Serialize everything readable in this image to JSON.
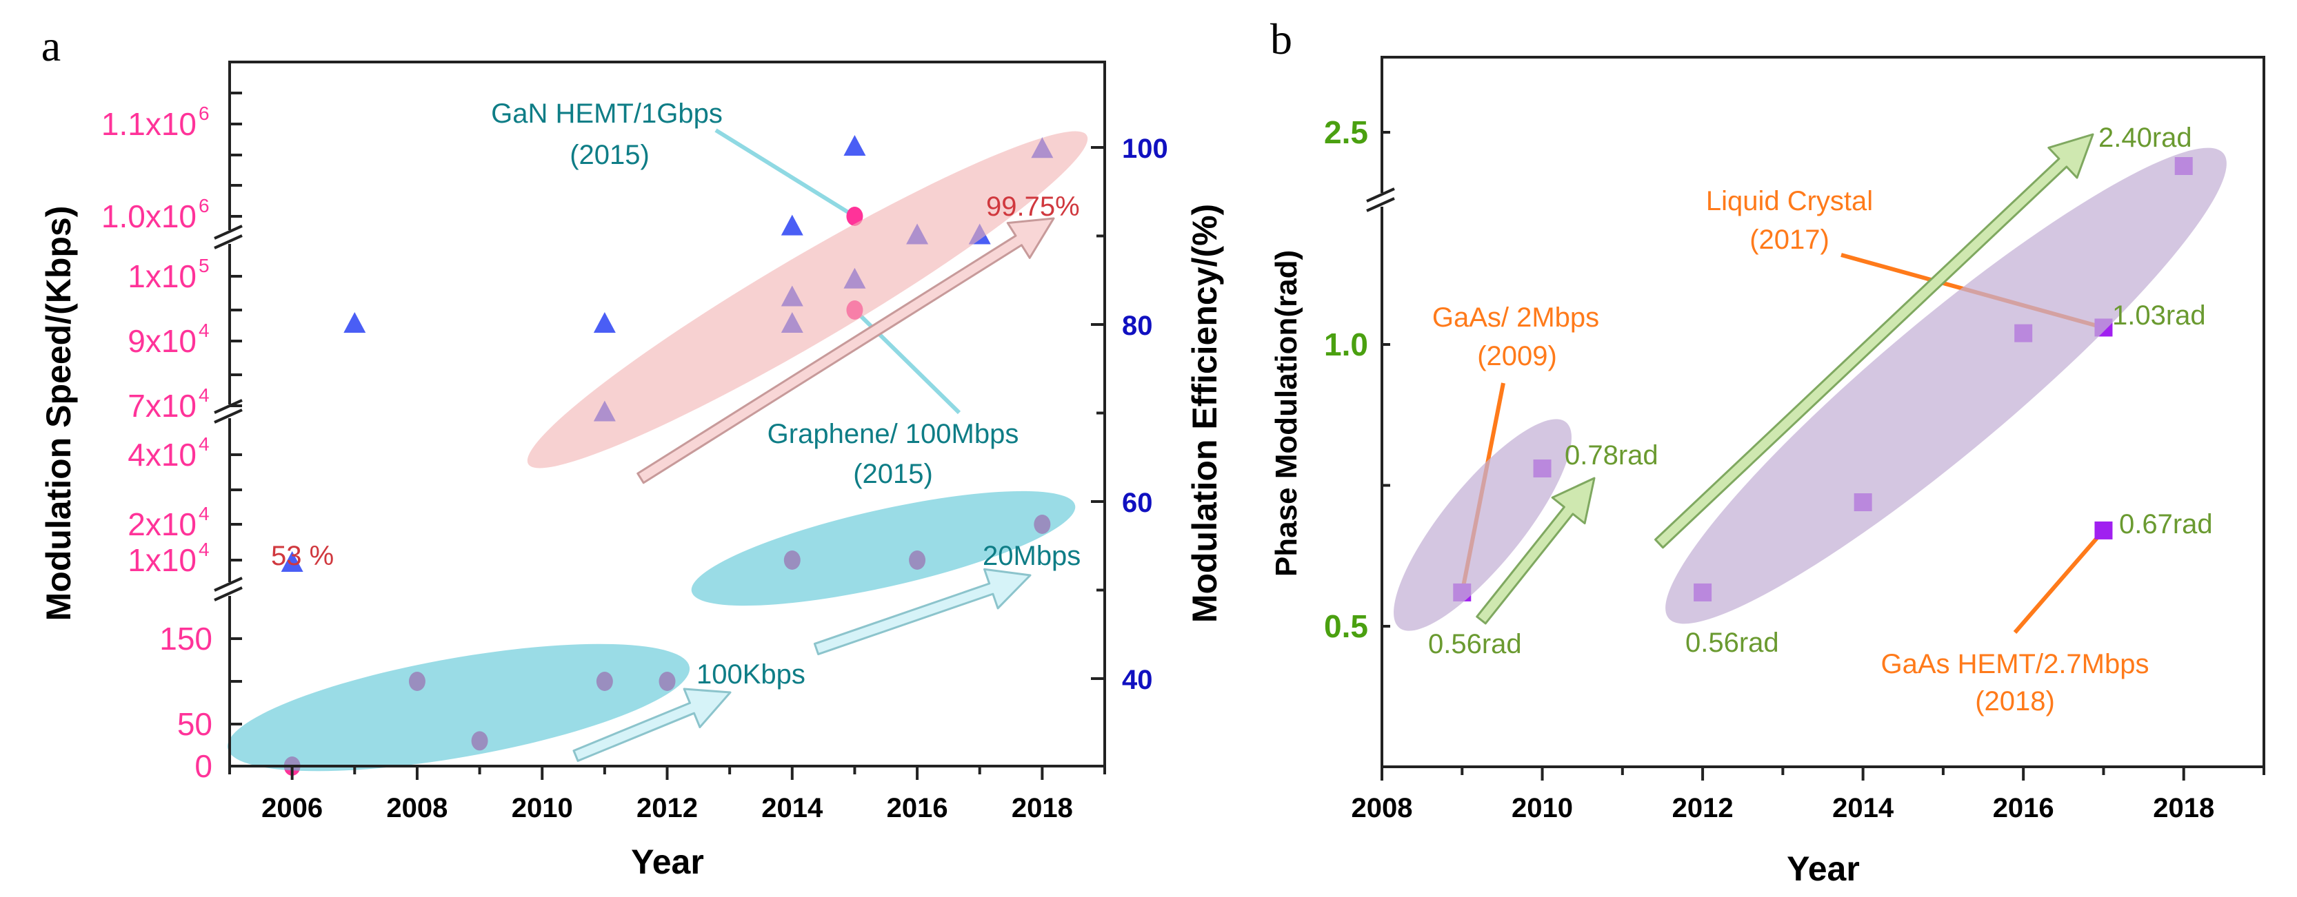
{
  "colors": {
    "speed_tick": "#ff3399",
    "efficiency_tick": "#1010c0",
    "phase_tick": "#4aa010",
    "speed_marker": "#ff3399",
    "efficiency_marker": "#4a5ef5",
    "phase_marker": "#a020f0",
    "teal_text": "#0e7d86",
    "red_text": "#d0383e",
    "orange_text": "#ff7a1a",
    "green_text": "#6a9a30",
    "pink_region": "#f2b3b3",
    "cyan_region": "#5cc6d6",
    "purple_region": "#c4b0d6"
  },
  "chart_data": [
    {
      "panel": "a",
      "type": "scatter",
      "xlabel": "Year",
      "ylabel": "Modulation Speed/(Kbps)",
      "y2label": "Modulation Efficiency/(%)",
      "xlim": [
        2005,
        2019
      ],
      "xticks": [
        "2006",
        "2008",
        "2010",
        "2012",
        "2014",
        "2016",
        "2018"
      ],
      "y_axis": "broken",
      "yticks": [
        {
          "value": 0,
          "base": "0",
          "exp": ""
        },
        {
          "value": 50,
          "base": "50",
          "exp": ""
        },
        {
          "value": 150,
          "base": "150",
          "exp": ""
        },
        {
          "value": 10000,
          "base": "1x10",
          "exp": "4"
        },
        {
          "value": 20000,
          "base": "2x10",
          "exp": "4"
        },
        {
          "value": 40000,
          "base": "4x10",
          "exp": "4"
        },
        {
          "value": 70000,
          "base": "7x10",
          "exp": "4"
        },
        {
          "value": 90000,
          "base": "9x10",
          "exp": "4"
        },
        {
          "value": 100000,
          "base": "1x10",
          "exp": "5"
        },
        {
          "value": 1000000,
          "base": "1.0x10",
          "exp": "6"
        },
        {
          "value": 1100000,
          "base": "1.1x10",
          "exp": "6"
        }
      ],
      "y2lim": [
        30,
        110
      ],
      "y2ticks": [
        40,
        60,
        80,
        100
      ],
      "series": [
        {
          "axis": "left",
          "marker": "circle",
          "points": [
            [
              2006,
              0
            ],
            [
              2008,
              100
            ],
            [
              2009,
              30
            ],
            [
              2011,
              100
            ],
            [
              2012,
              100
            ],
            [
              2014,
              10000
            ],
            [
              2015,
              95000
            ],
            [
              2015,
              1000000
            ],
            [
              2016,
              10000
            ],
            [
              2018,
              20000
            ]
          ]
        },
        {
          "axis": "right",
          "marker": "triangle",
          "points": [
            [
              2006,
              53
            ],
            [
              2007,
              80
            ],
            [
              2011,
              80
            ],
            [
              2011,
              70
            ],
            [
              2014,
              91
            ],
            [
              2014,
              83
            ],
            [
              2014,
              80
            ],
            [
              2015,
              100
            ],
            [
              2015,
              85
            ],
            [
              2016,
              90
            ],
            [
              2017,
              90
            ],
            [
              2018,
              99.75
            ]
          ]
        }
      ],
      "annotations": {
        "gan_title": "GaN HEMT/1Gbps",
        "gan_year": "(2015)",
        "graphene_title": "Graphene/ 100Mbps",
        "graphene_year": "(2015)",
        "pct_high": "99.75%",
        "pct_low": "53 %",
        "rate_low": "100Kbps",
        "rate_mid": "20Mbps"
      }
    },
    {
      "panel": "b",
      "type": "scatter",
      "xlabel": "Year",
      "ylabel": "Phase Modulation(rad)",
      "xlim": [
        2008,
        2019
      ],
      "xticks": [
        "2008",
        "2010",
        "2012",
        "2014",
        "2016",
        "2018"
      ],
      "y_axis": "broken",
      "yticks": [
        "0.5",
        "1.0",
        "2.5"
      ],
      "series": [
        {
          "marker": "square",
          "points": [
            [
              2009,
              0.56
            ],
            [
              2010,
              0.78
            ],
            [
              2012,
              0.56
            ],
            [
              2014,
              0.72
            ],
            [
              2016,
              1.02
            ],
            [
              2017,
              1.03
            ],
            [
              2017,
              0.67
            ],
            [
              2018,
              2.4
            ]
          ]
        }
      ],
      "annotations": {
        "lc_title": "Liquid Crystal",
        "lc_year": "(2017)",
        "gaas_title": "GaAs/ 2Mbps",
        "gaas_year": "(2009)",
        "hemt_title": "GaAs HEMT/2.7Mbps",
        "hemt_year": "(2018)",
        "rad_240": "2.40rad",
        "rad_103": "1.03rad",
        "rad_067": "0.67rad",
        "rad_078": "0.78rad",
        "rad_056_2012": "0.56rad",
        "rad_056_2009": "0.56rad"
      }
    }
  ],
  "panels": {
    "a_label": "a",
    "b_label": "b"
  }
}
